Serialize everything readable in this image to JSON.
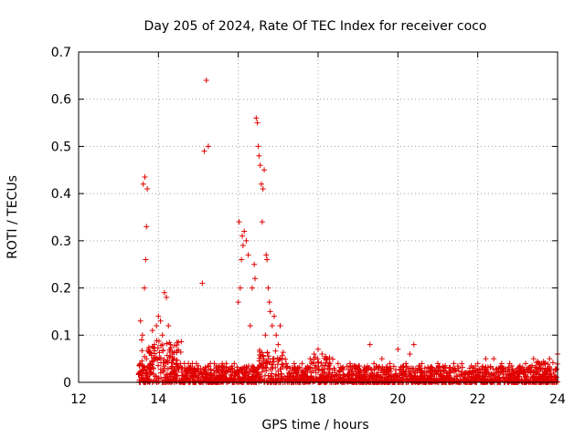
{
  "chart_data": {
    "type": "scatter",
    "title": "Day 205 of 2024, Rate Of TEC Index for receiver coco",
    "xlabel": "GPS time / hours",
    "ylabel": "ROTI / TECUs",
    "xlim": [
      12,
      24
    ],
    "ylim": [
      0,
      0.7
    ],
    "xticks": [
      "12",
      "14",
      "16",
      "18",
      "20",
      "22",
      "24"
    ],
    "yticks": [
      "0",
      "0.1",
      "0.2",
      "0.3",
      "0.4",
      "0.5",
      "0.6",
      "0.7"
    ],
    "grid": true,
    "marker": "plus",
    "color": "#e00000",
    "series": [
      {
        "x": [
          13.55,
          13.6,
          13.65,
          13.68,
          13.7,
          13.72,
          13.62,
          13.58,
          13.66,
          13.7,
          13.75,
          13.8,
          13.85,
          13.9,
          13.95,
          14.0,
          14.05,
          14.1,
          14.15,
          14.2,
          14.25,
          14.3,
          14.35,
          14.4,
          14.45,
          14.5,
          14.55,
          14.6,
          14.65,
          14.7,
          14.75,
          14.8,
          14.85,
          14.9,
          14.95,
          15.0,
          15.1,
          15.15,
          15.2,
          15.25,
          15.3,
          15.4,
          15.5,
          15.6,
          15.7,
          15.8,
          15.9,
          16.0,
          16.02,
          16.05,
          16.08,
          16.1,
          16.12,
          16.15,
          16.2,
          16.25,
          16.3,
          16.35,
          16.4,
          16.42,
          16.45,
          16.48,
          16.5,
          16.52,
          16.55,
          16.58,
          16.6,
          16.62,
          16.65,
          16.68,
          16.7,
          16.72,
          16.75,
          16.78,
          16.8,
          16.85,
          16.9,
          16.95,
          17.0,
          17.05,
          17.1,
          17.2,
          17.3,
          17.4,
          17.5,
          17.6,
          17.7,
          17.8,
          17.9,
          18.0,
          18.1,
          18.2,
          18.3,
          18.4,
          18.5,
          18.6,
          18.8,
          19.0,
          19.2,
          19.3,
          19.4,
          19.6,
          19.8,
          20.0,
          20.2,
          20.3,
          20.4,
          20.6,
          20.8,
          21.0,
          21.2,
          21.4,
          21.6,
          21.8,
          22.0,
          22.2,
          22.4,
          22.6,
          22.8,
          23.0,
          23.2,
          23.4,
          23.6,
          23.8,
          24.0
        ],
        "y": [
          0.13,
          0.1,
          0.2,
          0.26,
          0.33,
          0.41,
          0.42,
          0.09,
          0.435,
          0.05,
          0.07,
          0.04,
          0.11,
          0.08,
          0.12,
          0.14,
          0.13,
          0.1,
          0.19,
          0.18,
          0.12,
          0.08,
          0.06,
          0.05,
          0.04,
          0.03,
          0.04,
          0.03,
          0.04,
          0.03,
          0.04,
          0.03,
          0.04,
          0.03,
          0.04,
          0.035,
          0.21,
          0.49,
          0.64,
          0.5,
          0.04,
          0.04,
          0.035,
          0.04,
          0.04,
          0.03,
          0.04,
          0.17,
          0.34,
          0.2,
          0.26,
          0.31,
          0.29,
          0.32,
          0.3,
          0.27,
          0.12,
          0.2,
          0.25,
          0.22,
          0.56,
          0.55,
          0.5,
          0.48,
          0.46,
          0.42,
          0.34,
          0.41,
          0.45,
          0.1,
          0.27,
          0.26,
          0.2,
          0.17,
          0.15,
          0.12,
          0.14,
          0.1,
          0.08,
          0.12,
          0.05,
          0.04,
          0.03,
          0.04,
          0.03,
          0.04,
          0.03,
          0.05,
          0.06,
          0.07,
          0.06,
          0.05,
          0.04,
          0.03,
          0.04,
          0.03,
          0.04,
          0.03,
          0.03,
          0.08,
          0.04,
          0.05,
          0.04,
          0.07,
          0.04,
          0.06,
          0.08,
          0.04,
          0.03,
          0.04,
          0.03,
          0.04,
          0.04,
          0.03,
          0.04,
          0.05,
          0.05,
          0.04,
          0.04,
          0.03,
          0.04,
          0.05,
          0.04,
          0.05,
          0.06
        ]
      }
    ]
  }
}
